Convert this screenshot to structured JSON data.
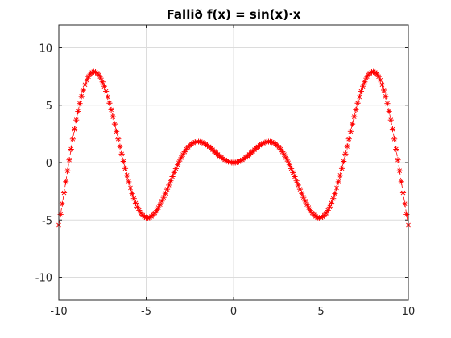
{
  "chart_data": {
    "type": "line",
    "title": "Fallið f(x) = sin(x)·x",
    "xlabel": "",
    "ylabel": "",
    "xlim": [
      -10,
      10
    ],
    "ylim": [
      -12,
      12
    ],
    "xticks": [
      -10,
      -5,
      0,
      5,
      10
    ],
    "yticks": [
      -10,
      -5,
      0,
      5,
      10
    ],
    "xtick_labels": [
      "-10",
      "-5",
      "0",
      "5",
      "10"
    ],
    "ytick_labels": [
      "-10",
      "-5",
      "0",
      "5",
      "10"
    ],
    "grid": true,
    "series": [
      {
        "name": "sin(x)·x",
        "function": "sin(x)*x",
        "x_start": -10,
        "x_end": 10,
        "n_points": 201,
        "line_style": "dashed",
        "marker": "*",
        "color": "#ff0000"
      }
    ]
  }
}
